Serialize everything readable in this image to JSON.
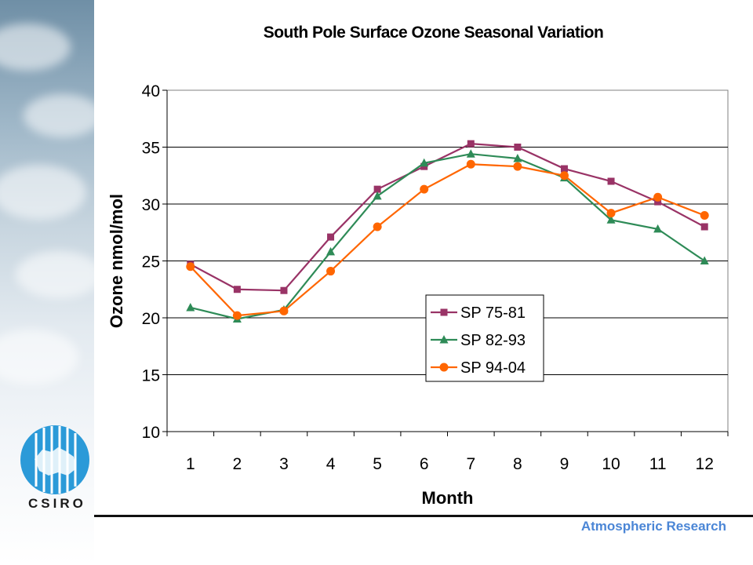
{
  "footer": {
    "brand": "Atmospheric Research"
  },
  "logo": {
    "text": "CSIRO"
  },
  "chart_data": {
    "type": "line",
    "title": "South Pole Surface Ozone Seasonal Variation",
    "xlabel": "Month",
    "ylabel": "Ozone nmol/mol",
    "x": [
      1,
      2,
      3,
      4,
      5,
      6,
      7,
      8,
      9,
      10,
      11,
      12
    ],
    "ylim": [
      10,
      40
    ],
    "yticks": [
      10,
      15,
      20,
      25,
      30,
      35,
      40
    ],
    "grid": true,
    "legend_position": "center",
    "series": [
      {
        "name": "SP 75-81",
        "marker": "square",
        "color": "#993366",
        "values": [
          24.7,
          22.5,
          22.4,
          27.1,
          31.3,
          33.3,
          35.3,
          35.0,
          33.1,
          32.0,
          30.2,
          28.0
        ]
      },
      {
        "name": "SP 82-93",
        "marker": "triangle",
        "color": "#2e8b57",
        "values": [
          20.9,
          19.9,
          20.7,
          25.8,
          30.7,
          33.6,
          34.4,
          34.0,
          32.3,
          28.6,
          27.8,
          25.0
        ]
      },
      {
        "name": "SP 94-04",
        "marker": "circle",
        "color": "#ff6600",
        "values": [
          24.5,
          20.2,
          20.6,
          24.1,
          28.0,
          31.3,
          33.5,
          33.3,
          32.5,
          29.2,
          30.6,
          29.0
        ]
      }
    ]
  }
}
